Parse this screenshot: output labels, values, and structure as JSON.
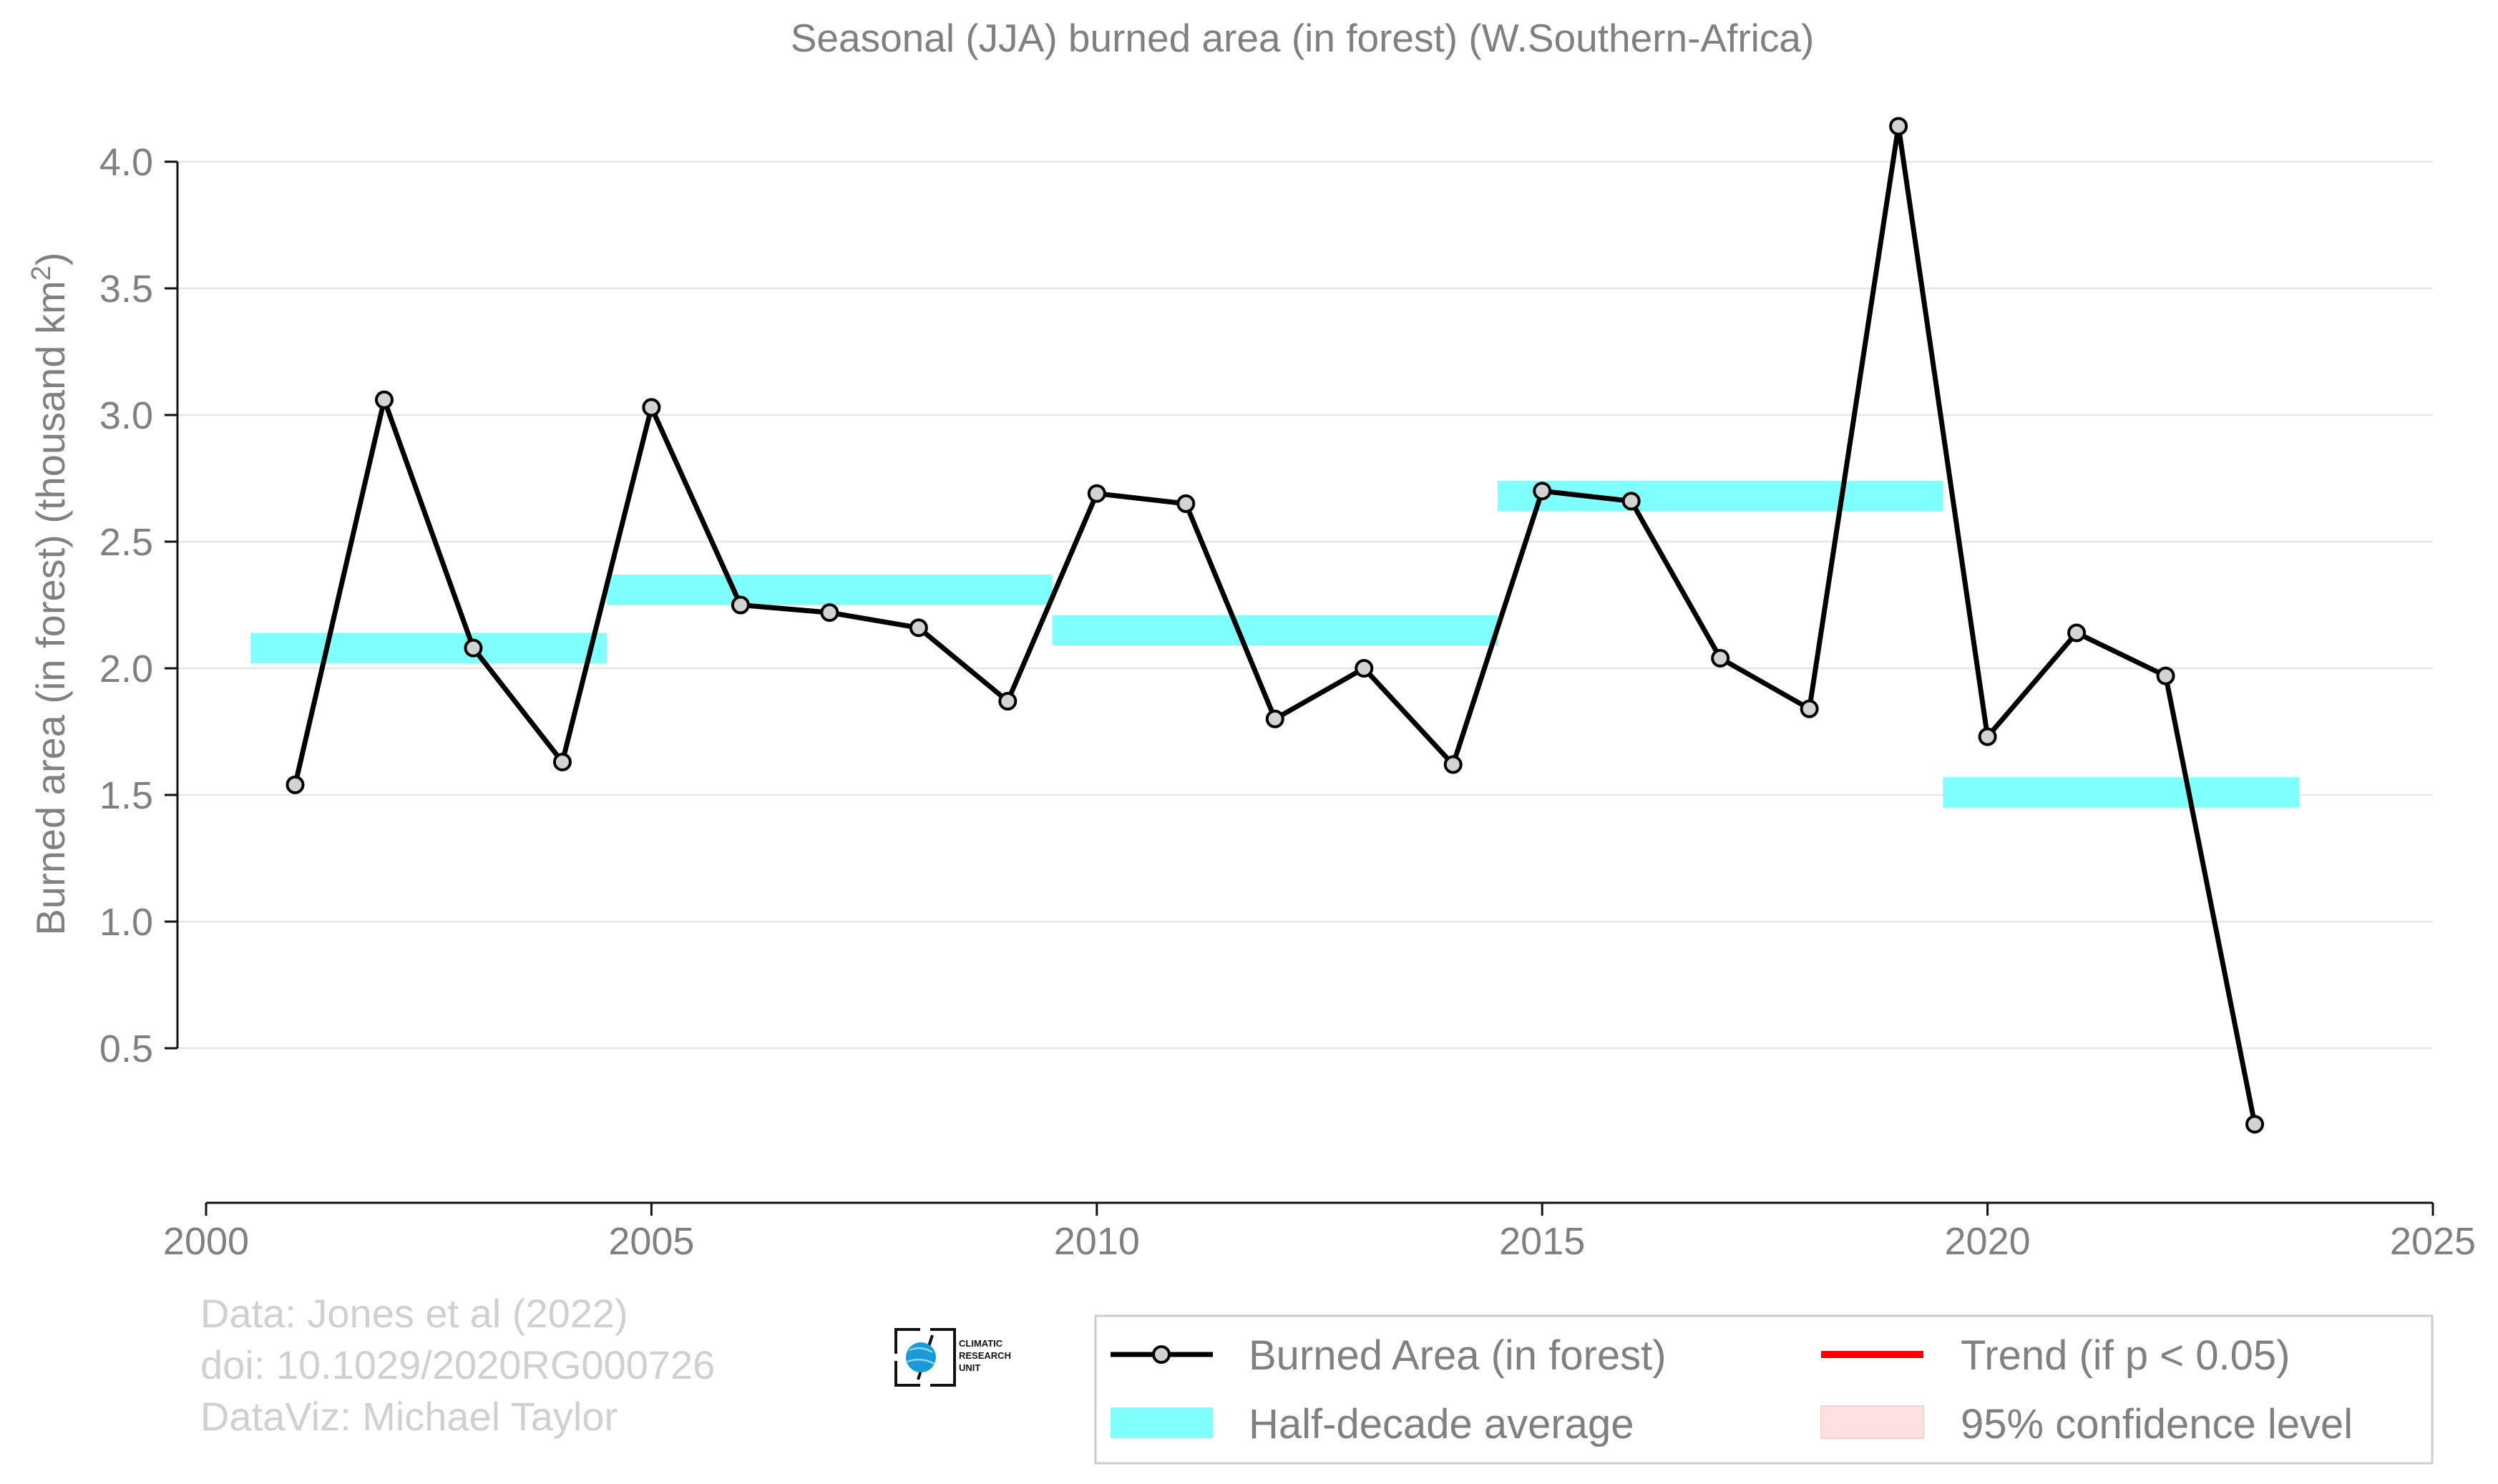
{
  "chart_data": {
    "type": "line",
    "title": "Seasonal (JJA) burned area (in forest) (W.Southern-Africa)",
    "ylabel_main": "Burned area (in forest) (thousand km",
    "ylabel_sup": "2",
    "ylabel_tail": ")",
    "xlim": [
      2000,
      2025
    ],
    "ylim": [
      0.0,
      4.2
    ],
    "x_ticks": [
      "2000",
      "2005",
      "2010",
      "2015",
      "2020",
      "2025"
    ],
    "y_ticks": [
      "0.5",
      "1.0",
      "1.5",
      "2.0",
      "2.5",
      "3.0",
      "3.5",
      "4.0"
    ],
    "grid": "horizontal",
    "legend_position": "bottom-right",
    "series": [
      {
        "name": "Burned Area (in forest)",
        "color": "#000000",
        "marker_fill": "#d3d3d3",
        "x": [
          2001,
          2002,
          2003,
          2004,
          2005,
          2006,
          2007,
          2008,
          2009,
          2010,
          2011,
          2012,
          2013,
          2014,
          2015,
          2016,
          2017,
          2018,
          2019,
          2020,
          2021,
          2022,
          2023
        ],
        "y": [
          1.54,
          3.06,
          2.08,
          1.63,
          3.03,
          2.25,
          2.22,
          2.16,
          1.87,
          2.69,
          2.65,
          1.8,
          2.0,
          1.62,
          2.7,
          2.66,
          2.04,
          1.84,
          4.14,
          1.73,
          2.14,
          1.97,
          0.2
        ]
      }
    ],
    "half_decade_average": {
      "name": "Half-decade average",
      "color": "#80ffff",
      "segments": [
        {
          "x_start": 2000.5,
          "x_end": 2004.5,
          "value": 2.08
        },
        {
          "x_start": 2004.5,
          "x_end": 2009.5,
          "value": 2.31
        },
        {
          "x_start": 2009.5,
          "x_end": 2014.5,
          "value": 2.15
        },
        {
          "x_start": 2014.5,
          "x_end": 2019.5,
          "value": 2.68
        },
        {
          "x_start": 2019.5,
          "x_end": 2023.5,
          "value": 1.51
        }
      ]
    },
    "legend": {
      "line": "Burned Area (in forest)",
      "avg": "Half-decade average",
      "trend": "Trend (if p < 0.05)",
      "ci": "95% confidence level"
    },
    "colors": {
      "trend": "#ff0000",
      "ci": "#ffe0e0"
    }
  },
  "credits": {
    "line1": "Data: Jones et al (2022)",
    "line2": "doi: 10.1029/2020RG000726",
    "line3": "DataViz: Michael Taylor"
  },
  "logo": {
    "line1": "CLIMATIC",
    "line2": "RESEARCH",
    "line3": "UNIT"
  }
}
